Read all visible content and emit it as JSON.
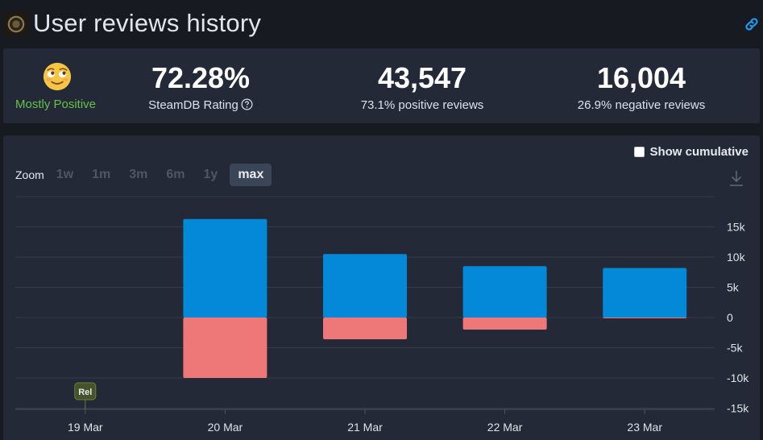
{
  "header": {
    "title": "User reviews history",
    "link_icon": "link-icon",
    "logo_icon": "game-logo-icon"
  },
  "summary": {
    "emoji_icon": "smiling-face-emoji-icon",
    "rating_label": "Mostly Positive",
    "rating_value": "72.28%",
    "rating_caption": "SteamDB Rating",
    "positive_count": "43,547",
    "positive_caption": "73.1% positive reviews",
    "negative_count": "16,004",
    "negative_caption": "26.9% negative reviews"
  },
  "controls": {
    "cumulative_label": "Show cumulative",
    "zoom_label": "Zoom",
    "zoom_options": [
      "1w",
      "1m",
      "3m",
      "6m",
      "1y",
      "max"
    ],
    "zoom_active": "max"
  },
  "colors": {
    "positive": "#0488d8",
    "negative": "#ee7878",
    "rating_label": "#66c04a"
  },
  "chart_data": {
    "type": "bar",
    "categories": [
      "19 Mar",
      "20 Mar",
      "21 Mar",
      "22 Mar",
      "23 Mar"
    ],
    "series": [
      {
        "values": [
          0,
          16300,
          10500,
          8500,
          8200
        ]
      },
      {
        "values": [
          0,
          -10000,
          -3600,
          -2000,
          -50
        ]
      }
    ],
    "y_ticks": [
      "15k",
      "10k",
      "5k",
      "0",
      "-5k",
      "-10k",
      "-15k"
    ],
    "ylim": [
      -17500,
      20000
    ],
    "grid": true,
    "annotation": {
      "label": "Rel",
      "category": "19 Mar"
    }
  }
}
